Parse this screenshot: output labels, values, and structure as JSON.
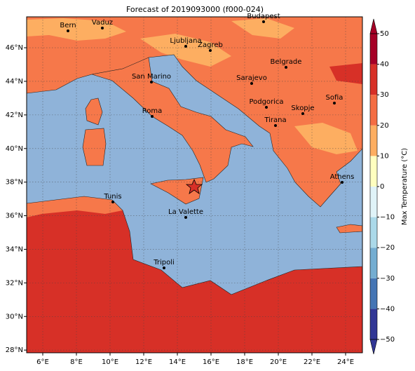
{
  "title": "Forecast of 2019093000 (f000-024)",
  "map": {
    "lon_ticks": [
      {
        "value": 6,
        "label": "6°E"
      },
      {
        "value": 8,
        "label": "8°E"
      },
      {
        "value": 10,
        "label": "10°E"
      },
      {
        "value": 12,
        "label": "12°E"
      },
      {
        "value": 14,
        "label": "14°E"
      },
      {
        "value": 16,
        "label": "16°E"
      },
      {
        "value": 18,
        "label": "18°E"
      },
      {
        "value": 20,
        "label": "20°E"
      },
      {
        "value": 22,
        "label": "22°E"
      },
      {
        "value": 24,
        "label": "24°E"
      }
    ],
    "lat_ticks": [
      {
        "value": 28,
        "label": "28°N"
      },
      {
        "value": 30,
        "label": "30°N"
      },
      {
        "value": 32,
        "label": "32°N"
      },
      {
        "value": 34,
        "label": "34°N"
      },
      {
        "value": 36,
        "label": "36°N"
      },
      {
        "value": 38,
        "label": "38°N"
      },
      {
        "value": 40,
        "label": "40°N"
      },
      {
        "value": 42,
        "label": "42°N"
      },
      {
        "value": 44,
        "label": "44°N"
      },
      {
        "value": 46,
        "label": "46°N"
      }
    ],
    "cities": [
      "Bern",
      "Vaduz",
      "Budapest",
      "Ljubljana",
      "Zagreb",
      "Belgrade",
      "San Marino",
      "Sarajevo",
      "Sofia",
      "Podgorica",
      "Skopje",
      "Roma",
      "Tirana",
      "Athens",
      "Tunis",
      "La Valette",
      "Tripoli"
    ]
  },
  "colorbar": {
    "label": "Max Temperature (°C)",
    "ticks": [
      {
        "value": -50,
        "label": "−50"
      },
      {
        "value": -40,
        "label": "−40"
      },
      {
        "value": -30,
        "label": "−30"
      },
      {
        "value": -20,
        "label": "−20"
      },
      {
        "value": -10,
        "label": "−10"
      },
      0,
      10,
      20,
      30,
      40,
      50
    ],
    "colors": [
      "#313695",
      "#4575b4",
      "#74add1",
      "#abd9e9",
      "#e0f3f8",
      "#ffffbf",
      "#fdae61",
      "#f46d43",
      "#d73027",
      "#a50026"
    ]
  }
}
